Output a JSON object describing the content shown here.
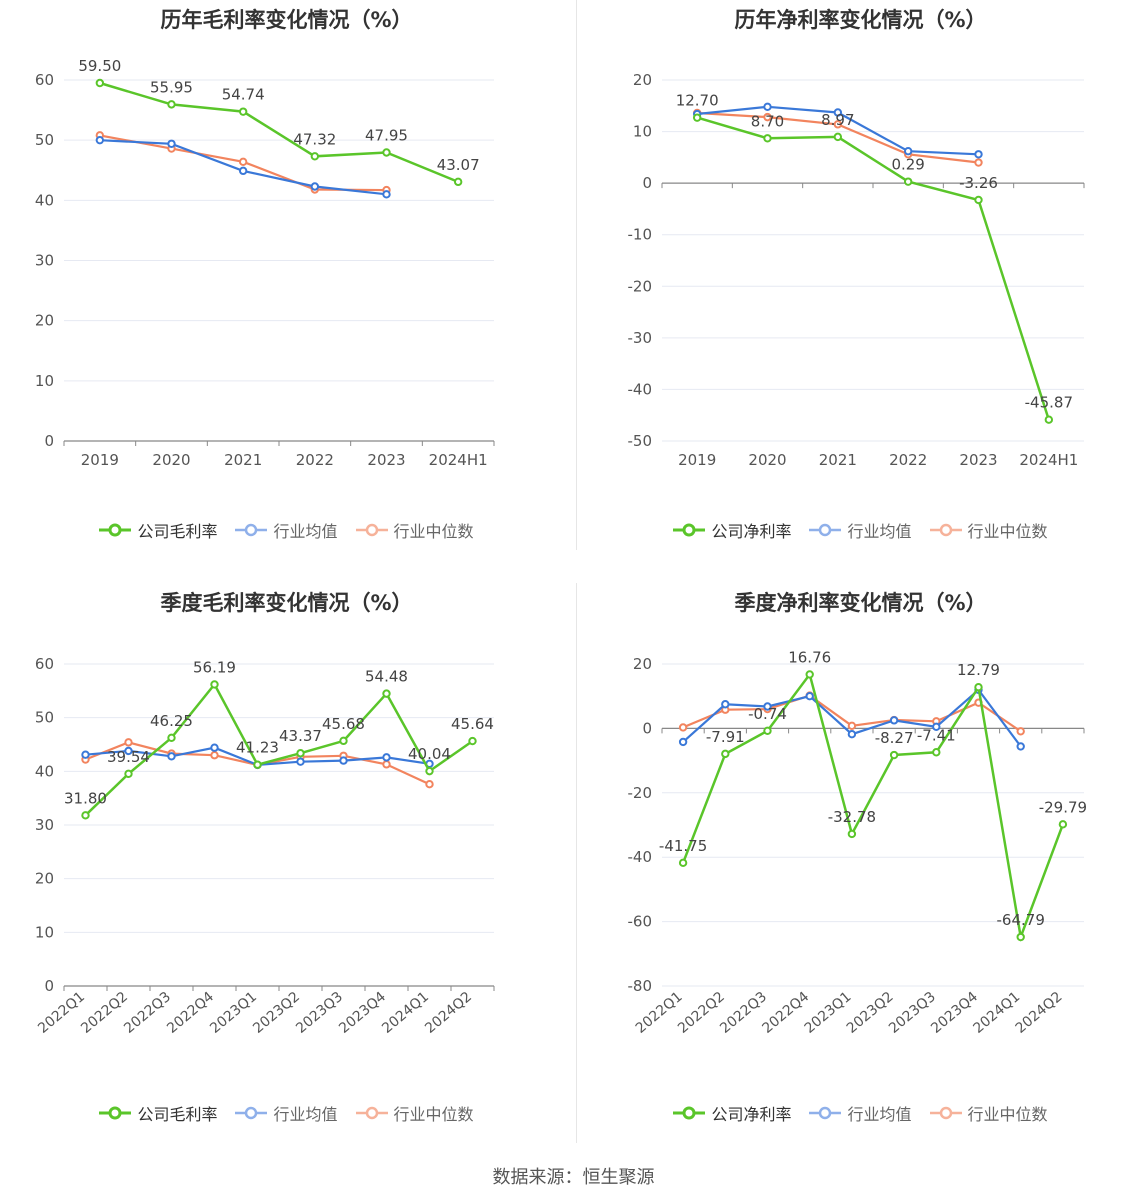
{
  "colors": {
    "company": "#5ac52a",
    "avg": "#3a78d8",
    "median": "#f2845e",
    "grid": "#e6e9f2",
    "axis": "#888888",
    "label": "#555555"
  },
  "source": "数据来源：恒生聚源",
  "chart_data": [
    {
      "type": "line",
      "title": "历年毛利率变化情况（%）",
      "categories": [
        "2019",
        "2020",
        "2021",
        "2022",
        "2023",
        "2024H1"
      ],
      "ylim": [
        0,
        60
      ],
      "yticks": [
        0,
        10,
        20,
        30,
        40,
        50,
        60
      ],
      "rotate_x": false,
      "grid": true,
      "legend": "bottom",
      "series": [
        {
          "name": "公司毛利率",
          "key": "company",
          "values": [
            59.5,
            55.95,
            54.74,
            47.32,
            47.95,
            43.07
          ],
          "labels": [
            "59.50",
            "55.95",
            "54.74",
            "47.32",
            "47.95",
            "43.07"
          ]
        },
        {
          "name": "行业均值",
          "key": "avg",
          "values": [
            50.0,
            49.4,
            44.9,
            42.3,
            41.0,
            null
          ]
        },
        {
          "name": "行业中位数",
          "key": "median",
          "values": [
            50.8,
            48.6,
            46.4,
            41.8,
            41.7,
            null
          ]
        }
      ]
    },
    {
      "type": "line",
      "title": "历年净利率变化情况（%）",
      "categories": [
        "2019",
        "2020",
        "2021",
        "2022",
        "2023",
        "2024H1"
      ],
      "ylim": [
        -50,
        20
      ],
      "yticks": [
        -50,
        -40,
        -30,
        -20,
        -10,
        0,
        10,
        20
      ],
      "rotate_x": false,
      "grid": true,
      "legend": "bottom",
      "series": [
        {
          "name": "公司净利率",
          "key": "company",
          "values": [
            12.7,
            8.7,
            8.97,
            0.29,
            -3.26,
            -45.87
          ],
          "labels": [
            "12.70",
            "8.70",
            "8.97",
            "0.29",
            "-3.26",
            "-45.87"
          ]
        },
        {
          "name": "行业均值",
          "key": "avg",
          "values": [
            13.4,
            14.8,
            13.7,
            6.2,
            5.6,
            null
          ]
        },
        {
          "name": "行业中位数",
          "key": "median",
          "values": [
            13.6,
            12.8,
            11.4,
            5.6,
            4.0,
            null
          ]
        }
      ]
    },
    {
      "type": "line",
      "title": "季度毛利率变化情况（%）",
      "categories": [
        "2022Q1",
        "2022Q2",
        "2022Q3",
        "2022Q4",
        "2023Q1",
        "2023Q2",
        "2023Q3",
        "2023Q4",
        "2024Q1",
        "2024Q2"
      ],
      "ylim": [
        0,
        60
      ],
      "yticks": [
        0,
        10,
        20,
        30,
        40,
        50,
        60
      ],
      "rotate_x": true,
      "grid": true,
      "legend": "bottom",
      "series": [
        {
          "name": "公司毛利率",
          "key": "company",
          "values": [
            31.8,
            39.54,
            46.25,
            56.19,
            41.23,
            43.37,
            45.68,
            54.48,
            40.04,
            45.64
          ],
          "labels": [
            "31.80",
            "39.54",
            "46.25",
            "56.19",
            "41.23",
            "43.37",
            "45.68",
            "54.48",
            "40.04",
            "45.64"
          ]
        },
        {
          "name": "行业均值",
          "key": "avg",
          "values": [
            43.1,
            43.8,
            42.8,
            44.4,
            41.2,
            41.8,
            42.0,
            42.6,
            41.4,
            null
          ]
        },
        {
          "name": "行业中位数",
          "key": "median",
          "values": [
            42.2,
            45.4,
            43.3,
            43.0,
            41.2,
            42.7,
            42.9,
            41.3,
            37.6,
            null
          ]
        }
      ]
    },
    {
      "type": "line",
      "title": "季度净利率变化情况（%）",
      "categories": [
        "2022Q1",
        "2022Q2",
        "2022Q3",
        "2022Q4",
        "2023Q1",
        "2023Q2",
        "2023Q3",
        "2023Q4",
        "2024Q1",
        "2024Q2"
      ],
      "ylim": [
        -80,
        20
      ],
      "yticks": [
        -80,
        -60,
        -40,
        -20,
        0,
        20
      ],
      "rotate_x": true,
      "grid": true,
      "legend": "bottom",
      "series": [
        {
          "name": "公司净利率",
          "key": "company",
          "values": [
            -41.75,
            -7.91,
            -0.74,
            16.76,
            -32.78,
            -8.27,
            -7.41,
            12.79,
            -64.79,
            -29.79
          ],
          "labels": [
            "-41.75",
            "-7.91",
            "-0.74",
            "16.76",
            "-32.78",
            "-8.27",
            "-7.41",
            "12.79",
            "-64.79",
            "-29.79"
          ]
        },
        {
          "name": "行业均值",
          "key": "avg",
          "values": [
            -4.2,
            7.5,
            6.8,
            10.0,
            -1.8,
            2.5,
            0.5,
            12.0,
            -5.6,
            null
          ]
        },
        {
          "name": "行业中位数",
          "key": "median",
          "values": [
            0.3,
            5.8,
            6.0,
            10.2,
            0.8,
            2.6,
            2.2,
            8.0,
            -0.9,
            null
          ]
        }
      ]
    }
  ]
}
